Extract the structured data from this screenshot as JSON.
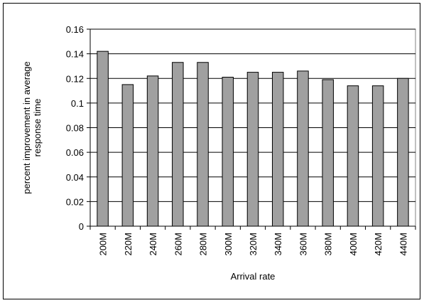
{
  "chart_data": {
    "type": "bar",
    "ylabel": [
      "percent improvement in average",
      "response time"
    ],
    "xlabel": "Arrival rate",
    "categories": [
      "200M",
      "220M",
      "240M",
      "260M",
      "280M",
      "300M",
      "320M",
      "340M",
      "360M",
      "380M",
      "400M",
      "420M",
      "440M"
    ],
    "values": [
      0.142,
      0.115,
      0.122,
      0.133,
      0.133,
      0.121,
      0.125,
      0.125,
      0.126,
      0.119,
      0.114,
      0.114,
      0.12
    ],
    "color": "#a0a0a0",
    "ylim": [
      0,
      0.16
    ],
    "yticks": [
      0,
      0.02,
      0.04,
      0.06,
      0.08,
      0.1,
      0.12,
      0.14,
      0.16
    ],
    "grid": true
  }
}
